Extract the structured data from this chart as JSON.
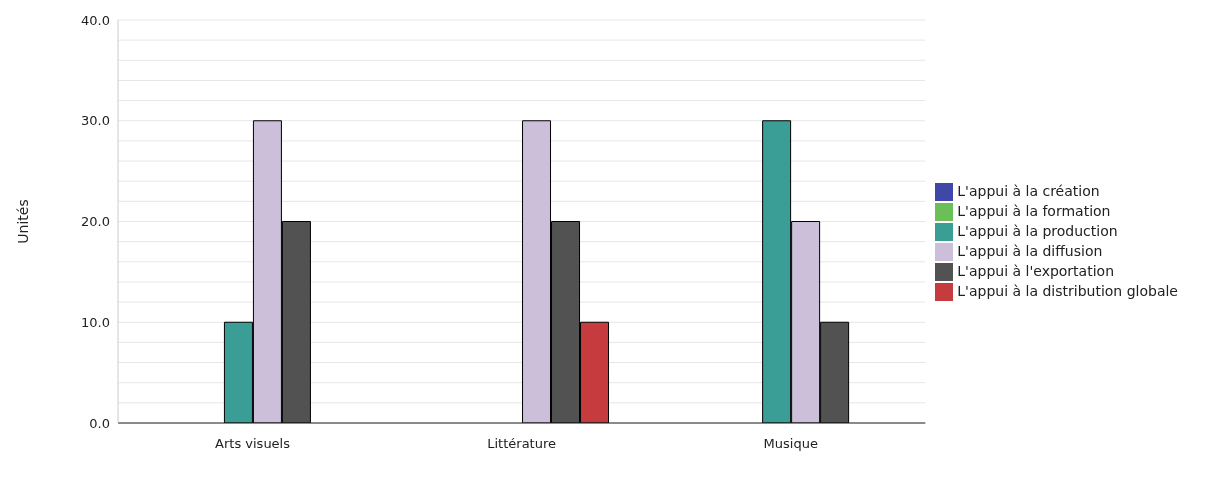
{
  "chart_data": {
    "type": "bar",
    "ylabel": "Unités",
    "categories": [
      "Arts visuels",
      "Littérature",
      "Musique"
    ],
    "series": [
      {
        "name": "L'appui à la création",
        "color": "#3f48a8",
        "values": [
          null,
          null,
          null
        ]
      },
      {
        "name": "L'appui à la formation",
        "color": "#6abf59",
        "values": [
          null,
          null,
          null
        ]
      },
      {
        "name": "L'appui à la production",
        "color": "#3a9e96",
        "values": [
          10,
          null,
          30
        ]
      },
      {
        "name": "L'appui à la diffusion",
        "color": "#cbbfda",
        "values": [
          30,
          30,
          20
        ]
      },
      {
        "name": "L'appui à l'exportation",
        "color": "#525252",
        "values": [
          20,
          20,
          10
        ]
      },
      {
        "name": "L'appui à la distribution globale",
        "color": "#c63b3e",
        "values": [
          null,
          10,
          null
        ]
      }
    ],
    "ylim": [
      0,
      40
    ],
    "yticks": [
      {
        "value": 0,
        "label": "0.0"
      },
      {
        "value": 2,
        "label": null
      },
      {
        "value": 4,
        "label": null
      },
      {
        "value": 6,
        "label": null
      },
      {
        "value": 8,
        "label": null
      },
      {
        "value": 10,
        "label": "10.0"
      },
      {
        "value": 12,
        "label": null
      },
      {
        "value": 14,
        "label": null
      },
      {
        "value": 16,
        "label": null
      },
      {
        "value": 18,
        "label": null
      },
      {
        "value": 20,
        "label": "20.0"
      },
      {
        "value": 22,
        "label": null
      },
      {
        "value": 24,
        "label": null
      },
      {
        "value": 26,
        "label": null
      },
      {
        "value": 28,
        "label": null
      },
      {
        "value": 30,
        "label": "30.0"
      },
      {
        "value": 32,
        "label": null
      },
      {
        "value": 34,
        "label": null
      },
      {
        "value": 36,
        "label": null
      },
      {
        "value": 38,
        "label": null
      },
      {
        "value": 40,
        "label": "40.0"
      }
    ],
    "grid": "y",
    "legend": "right"
  }
}
